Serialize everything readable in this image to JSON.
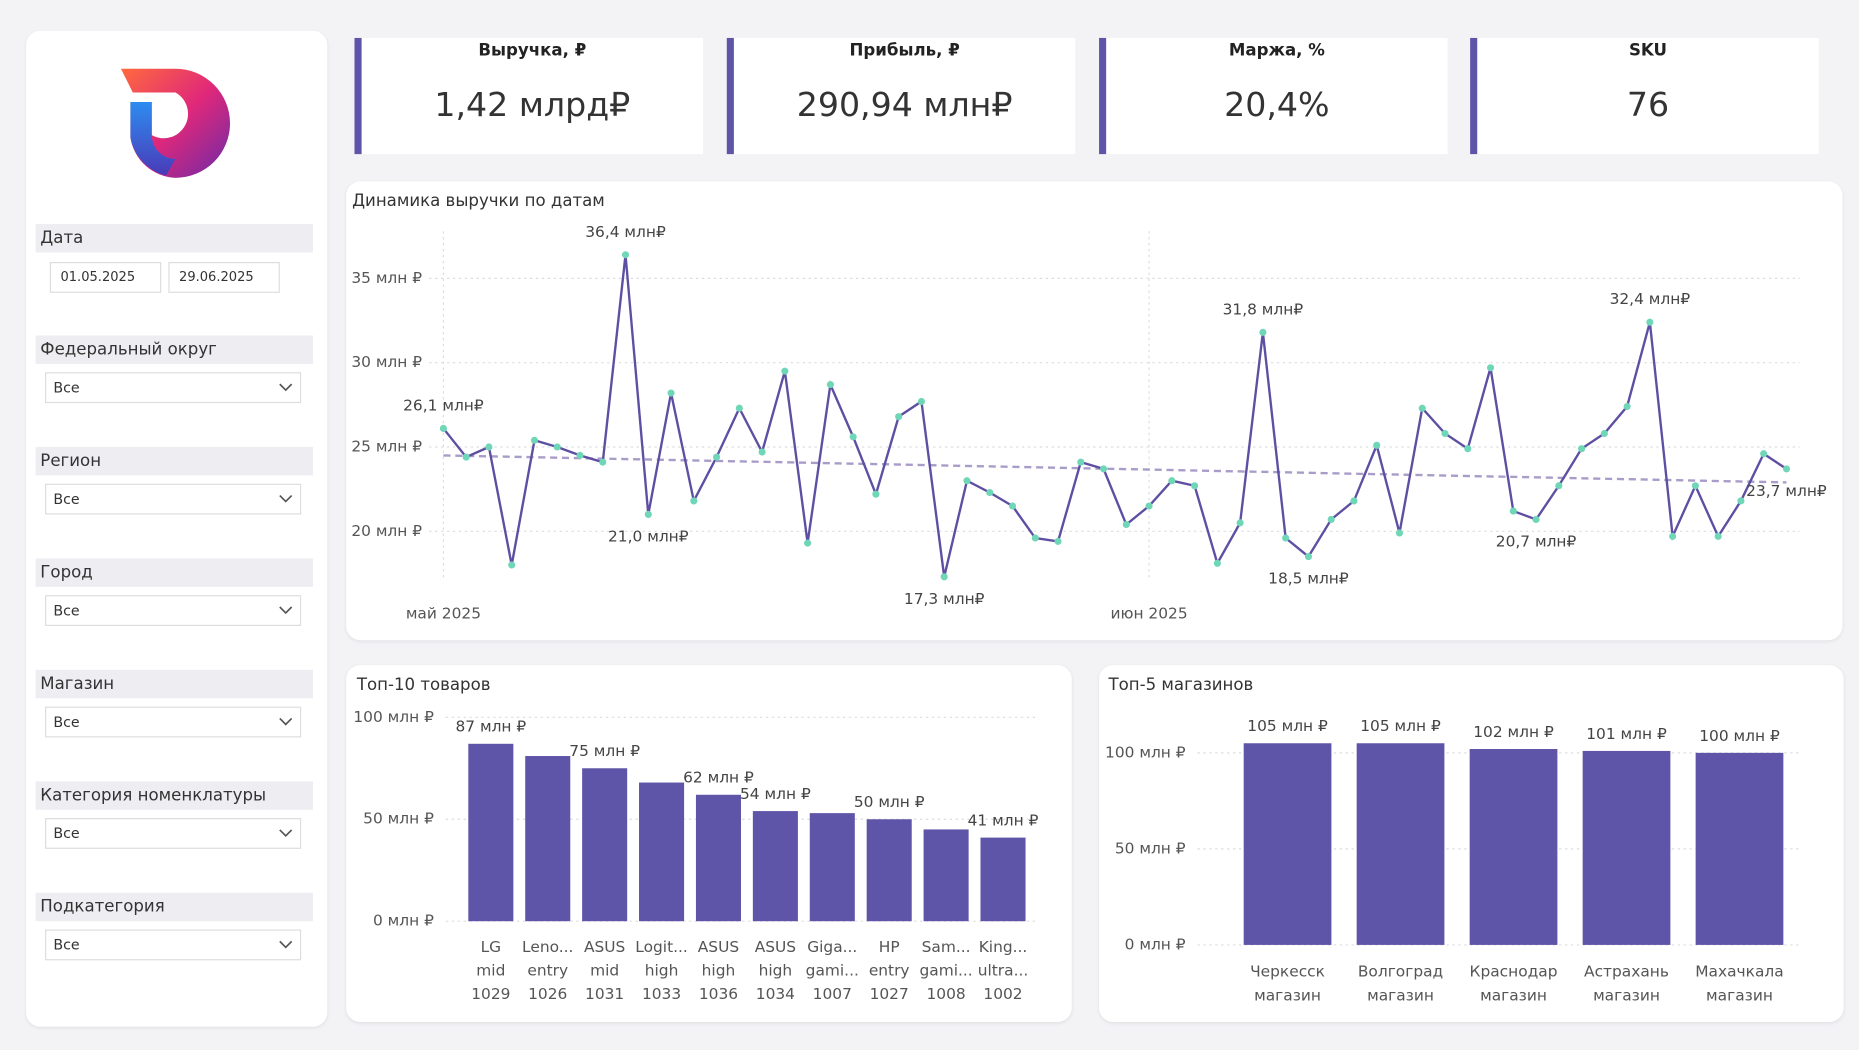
{
  "sidebar": {
    "date_filter": {
      "label": "Дата",
      "from": "01.05.2025",
      "to": "29.06.2025"
    },
    "filters": [
      {
        "label": "Федеральный округ",
        "value": "Все"
      },
      {
        "label": "Регион",
        "value": "Все"
      },
      {
        "label": "Город",
        "value": "Все"
      },
      {
        "label": "Магазин",
        "value": "Все"
      },
      {
        "label": "Категория номенклатуры",
        "value": "Все"
      },
      {
        "label": "Подкатегория",
        "value": "Все"
      }
    ]
  },
  "kpis": [
    {
      "label": "Выручка, ₽",
      "value": "1,42 млрд₽"
    },
    {
      "label": "Прибыль, ₽",
      "value": "290,94 млн₽"
    },
    {
      "label": "Маржа, %",
      "value": "20,4%"
    },
    {
      "label": "SKU",
      "value": "76"
    }
  ],
  "chart_data": [
    {
      "type": "line",
      "title": "Динамика выручки по датам",
      "color": "#5e4fa2",
      "marker_color": "#6fd6b8",
      "trend_color": "#a89cc8",
      "categories": [
        "май 2025",
        null,
        null,
        null,
        null,
        null,
        null,
        null,
        null,
        null,
        null,
        null,
        null,
        null,
        null,
        null,
        null,
        null,
        null,
        null,
        null,
        null,
        null,
        null,
        null,
        null,
        null,
        null,
        null,
        null,
        null,
        "июн 2025",
        null,
        null,
        null,
        null,
        null,
        null,
        null,
        null,
        null,
        null,
        null,
        null,
        null,
        null,
        null,
        null,
        null,
        null,
        null,
        null,
        null,
        null,
        null,
        null,
        null,
        null,
        null,
        null
      ],
      "values": [
        26.1,
        24.4,
        25.0,
        18.0,
        25.4,
        25.0,
        24.5,
        24.1,
        36.4,
        21.0,
        28.2,
        21.8,
        24.4,
        27.3,
        24.7,
        29.5,
        19.3,
        28.7,
        25.6,
        22.2,
        26.8,
        27.7,
        17.3,
        23.0,
        22.3,
        21.5,
        19.6,
        19.4,
        24.1,
        23.7,
        20.4,
        21.5,
        23.0,
        22.7,
        18.1,
        20.5,
        31.8,
        19.6,
        18.5,
        20.7,
        21.8,
        25.1,
        19.9,
        27.3,
        25.8,
        24.9,
        29.7,
        21.2,
        20.7,
        22.7,
        24.9,
        25.8,
        27.4,
        32.4,
        19.7,
        22.7,
        19.7,
        21.8,
        24.6,
        23.7
      ],
      "value_labels": [
        "26,1 млн₽",
        null,
        null,
        null,
        null,
        null,
        null,
        null,
        "36,4 млн₽",
        "21,0 млн₽",
        null,
        null,
        null,
        null,
        null,
        null,
        null,
        null,
        null,
        null,
        null,
        null,
        "17,3 млн₽",
        null,
        null,
        null,
        null,
        null,
        null,
        null,
        null,
        null,
        null,
        null,
        null,
        null,
        "31,8 млн₽",
        null,
        "18,5 млн₽",
        null,
        null,
        null,
        null,
        null,
        null,
        null,
        null,
        null,
        "20,7 млн₽",
        null,
        null,
        null,
        null,
        "32,4 млн₽",
        null,
        null,
        null,
        null,
        null,
        "23,7 млн₽"
      ],
      "trend_line": [
        24.5,
        22.9
      ],
      "ylim": [
        16,
        37.8
      ],
      "yticks": [
        {
          "value": 20,
          "label": "20 млн ₽"
        },
        {
          "value": 25,
          "label": "25 млн ₽"
        },
        {
          "value": 30,
          "label": "30 млн ₽"
        },
        {
          "value": 35,
          "label": "35 млн ₽"
        }
      ],
      "grid": true
    },
    {
      "type": "bar",
      "title": "Топ-10 товаров",
      "color": "#5e55a8",
      "categories": [
        [
          "LG",
          "mid",
          "1029"
        ],
        [
          "Leno...",
          "entry",
          "1026"
        ],
        [
          "ASUS",
          "mid",
          "1031"
        ],
        [
          "Logit...",
          "high",
          "1033"
        ],
        [
          "ASUS",
          "high",
          "1036"
        ],
        [
          "ASUS",
          "high",
          "1034"
        ],
        [
          "Giga...",
          "gami...",
          "1007"
        ],
        [
          "HP",
          "entry",
          "1027"
        ],
        [
          "Sam...",
          "gami...",
          "1008"
        ],
        [
          "King...",
          "ultra...",
          "1002"
        ]
      ],
      "values": [
        87,
        81,
        75,
        68,
        62,
        54,
        53,
        50,
        45,
        41
      ],
      "value_labels": [
        "87 млн ₽",
        null,
        "75 млн ₽",
        null,
        "62 млн ₽",
        "54 млн ₽",
        null,
        "50 млн ₽",
        null,
        "41 млн ₽"
      ],
      "ylim": [
        0,
        100
      ],
      "yticks": [
        {
          "value": 0,
          "label": "0 млн ₽"
        },
        {
          "value": 50,
          "label": "50 млн ₽"
        },
        {
          "value": 100,
          "label": "100 млн ₽"
        }
      ],
      "grid": true
    },
    {
      "type": "bar",
      "title": "Топ-5 магазинов",
      "color": "#5e55a8",
      "categories": [
        [
          "Черкесск",
          "магазин"
        ],
        [
          "Волгоград",
          "магазин"
        ],
        [
          "Краснодар",
          "магазин"
        ],
        [
          "Астрахань",
          "магазин"
        ],
        [
          "Махачкала",
          "магазин"
        ]
      ],
      "values": [
        105,
        105,
        102,
        101,
        100
      ],
      "value_labels": [
        "105 млн ₽",
        "105 млн ₽",
        "102 млн ₽",
        "101 млн ₽",
        "100 млн ₽"
      ],
      "ylim": [
        0,
        120
      ],
      "yticks": [
        {
          "value": 0,
          "label": "0 млн ₽"
        },
        {
          "value": 50,
          "label": "50 млн ₽"
        },
        {
          "value": 100,
          "label": "100 млн ₽"
        }
      ],
      "grid": true
    }
  ]
}
